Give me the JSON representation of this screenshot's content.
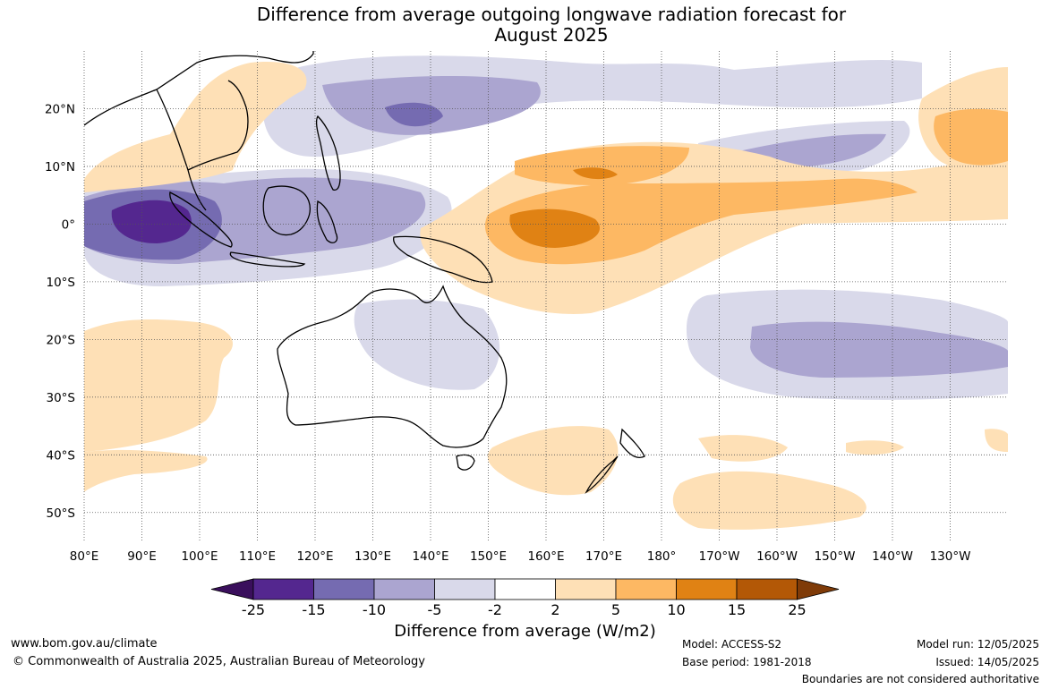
{
  "title": {
    "line1": "Difference from average outgoing longwave radiation forecast for",
    "line2": "August 2025"
  },
  "map": {
    "lon_labels": [
      "80°E",
      "90°E",
      "100°E",
      "110°E",
      "120°E",
      "130°E",
      "140°E",
      "150°E",
      "160°E",
      "170°E",
      "180°",
      "170°W",
      "160°W",
      "150°W",
      "140°W",
      "130°W"
    ],
    "lat_labels": [
      "20°N",
      "10°N",
      "0°",
      "10°S",
      "20°S",
      "30°S",
      "40°S",
      "50°S"
    ],
    "lon_range": [
      80,
      240
    ],
    "lat_range": [
      -55,
      30
    ],
    "gridlines": "dotted"
  },
  "colorbar": {
    "title": "Difference from average (W/m2)",
    "ticks": [
      "-25",
      "-15",
      "-10",
      "-5",
      "-2",
      "2",
      "5",
      "10",
      "15",
      "25"
    ],
    "colors": {
      "lt_neg25": "#3a0f5c",
      "neg25_neg15": "#54278f",
      "neg15_neg10": "#756bb1",
      "neg10_neg5": "#aba5d0",
      "neg5_neg2": "#d9d9ea",
      "neg2_2": "#ffffff",
      "p2_5": "#fee0b6",
      "p5_10": "#fdb863",
      "p10_15": "#e08214",
      "p15_25": "#b35806",
      "gt_25": "#7f3b08"
    }
  },
  "footer": {
    "website": "www.bom.gov.au/climate",
    "copyright": "© Commonwealth of Australia 2025, Australian Bureau of Meteorology",
    "model": "Model: ACCESS-S2",
    "base_period": "Base period: 1981-2018",
    "model_run": "Model run: 12/05/2025",
    "issued": "Issued: 14/05/2025",
    "disclaimer": "Boundaries are not considered authoritative"
  }
}
